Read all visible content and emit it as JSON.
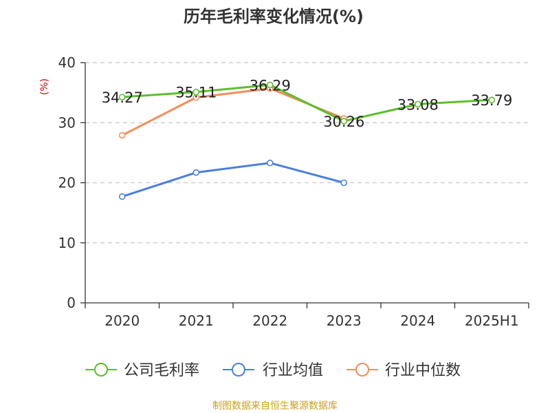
{
  "chart_data": {
    "type": "line",
    "title": "历年毛利率变化情况(%)",
    "ylabel": "(%)",
    "xlabel": "",
    "categories": [
      "2020",
      "2021",
      "2022",
      "2023",
      "2024",
      "2025H1"
    ],
    "ylim": [
      0,
      40
    ],
    "yticks": [
      0,
      10,
      20,
      30,
      40
    ],
    "grid": true,
    "legend_position": "bottom",
    "series": [
      {
        "name": "公司毛利率",
        "color": "#5ac02a",
        "values": [
          34.27,
          35.11,
          36.29,
          30.26,
          33.08,
          33.79
        ],
        "labels": [
          "34.27",
          "35.11",
          "36.29",
          "30.26",
          "33.08",
          "33.79"
        ]
      },
      {
        "name": "行业均值",
        "color": "#4a7fdc",
        "values": [
          17.7,
          21.7,
          23.3,
          20.0,
          null,
          null
        ]
      },
      {
        "name": "行业中位数",
        "color": "#f58b5a",
        "values": [
          27.9,
          34.2,
          35.7,
          30.7,
          null,
          null
        ]
      }
    ],
    "source": "制图数据来自恒生聚源数据库"
  }
}
